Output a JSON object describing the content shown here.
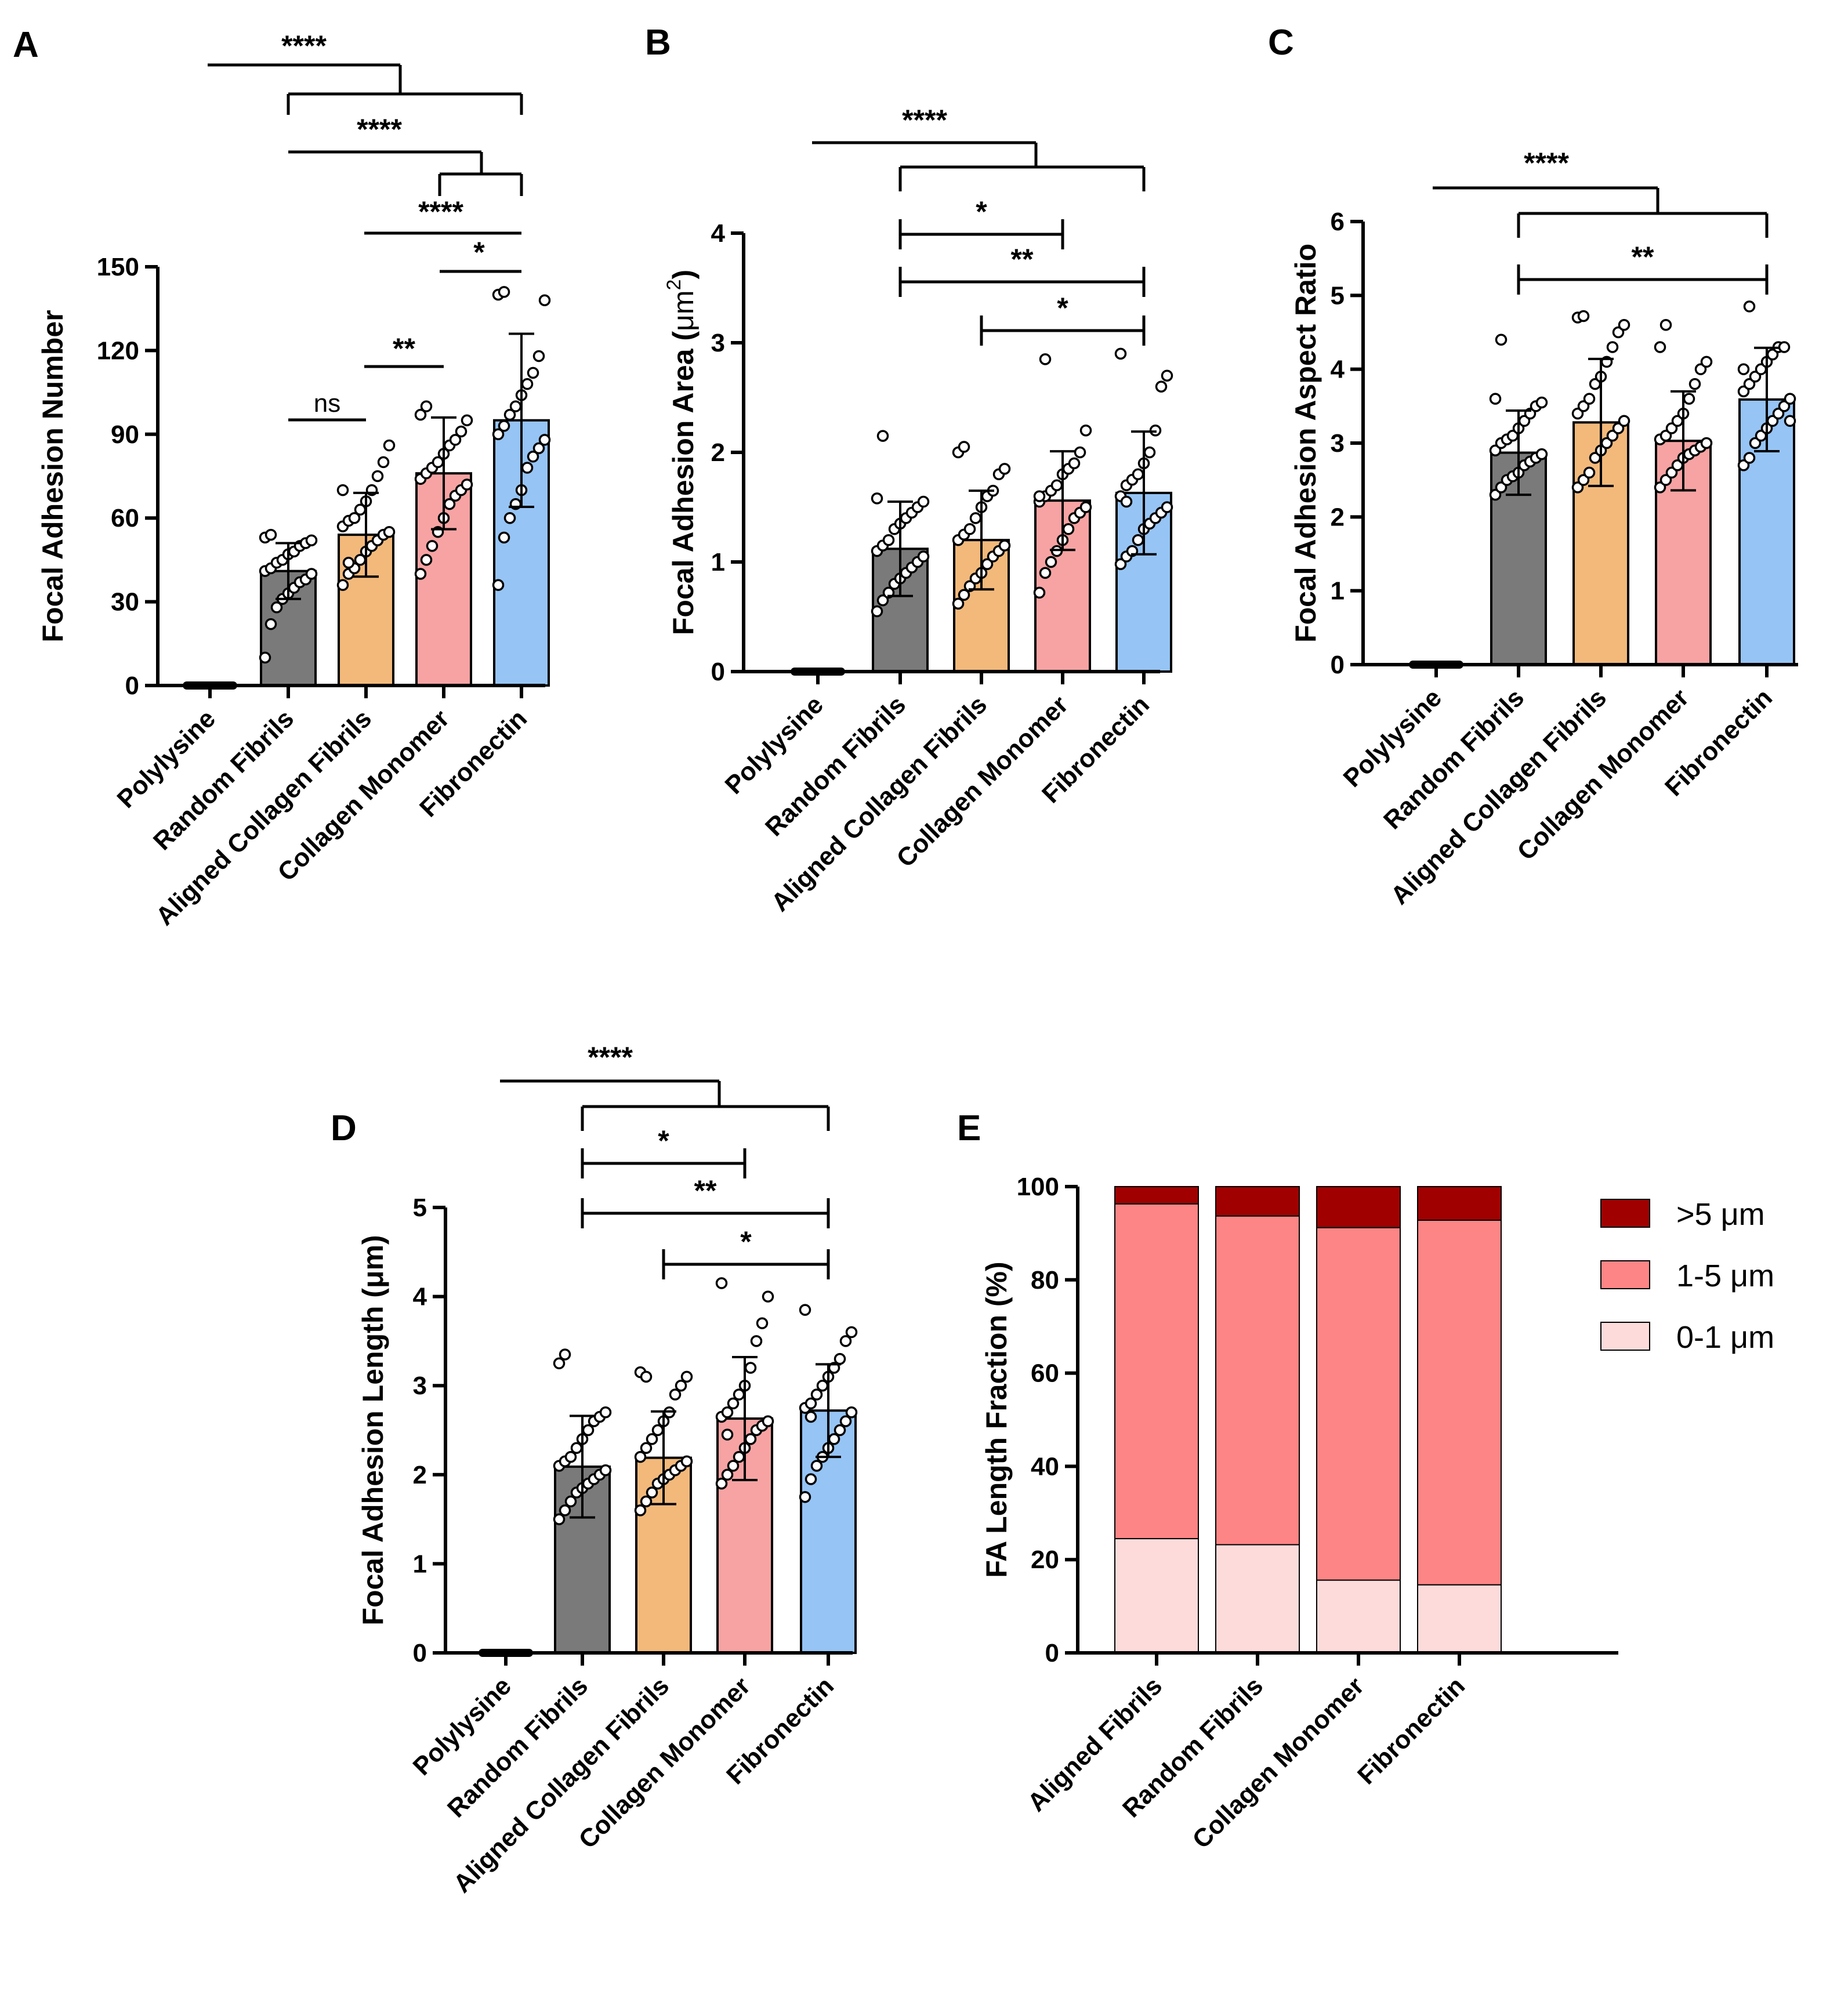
{
  "chart_data": [
    {
      "panel": "A",
      "type": "bar",
      "ylabel": "Focal Adhesion Number",
      "ylim": [
        0,
        150
      ],
      "yticks": [
        0,
        30,
        60,
        90,
        120,
        150
      ],
      "categories": [
        "Polylysine",
        "Random Fibrils",
        "Aligned Collagen Fibrils",
        "Collagen Monomer",
        "Fibronectin"
      ],
      "values": [
        0,
        41,
        54,
        76,
        95
      ],
      "errors": [
        0,
        10,
        15,
        20,
        31
      ],
      "colors": [
        "#7a7a7a",
        "#7a7a7a",
        "#f2b97b",
        "#f7a3a3",
        "#96c4f5"
      ],
      "points": [
        [
          0,
          0,
          0,
          0,
          0,
          0,
          0,
          0,
          0,
          0,
          0,
          0,
          0,
          0,
          0,
          0,
          0,
          0,
          0,
          0
        ],
        [
          10,
          22,
          28,
          31,
          33,
          35,
          37,
          38,
          40,
          41,
          42,
          44,
          45,
          47,
          48,
          50,
          51,
          52,
          53,
          54
        ],
        [
          36,
          40,
          42,
          45,
          48,
          50,
          52,
          54,
          55,
          57,
          59,
          60,
          63,
          66,
          70,
          75,
          80,
          86,
          70,
          44
        ],
        [
          40,
          45,
          50,
          55,
          60,
          65,
          68,
          70,
          72,
          74,
          76,
          78,
          80,
          83,
          86,
          88,
          91,
          95,
          97,
          100
        ],
        [
          36,
          53,
          60,
          65,
          70,
          78,
          82,
          85,
          88,
          90,
          93,
          97,
          100,
          104,
          108,
          112,
          118,
          138,
          140,
          141
        ]
      ],
      "significance": [
        {
          "from": 0,
          "to": "group",
          "label": "****"
        },
        {
          "from": 1,
          "to": "group",
          "label": "****"
        },
        {
          "from": 3,
          "to": 4,
          "label": "****"
        },
        {
          "from": 2,
          "to": 4,
          "label": "*"
        },
        {
          "from": 3,
          "to": 4,
          "label": "*"
        },
        {
          "from": 2,
          "to": 3,
          "label": "**"
        },
        {
          "from": 1,
          "to": 2,
          "label": "ns"
        }
      ]
    },
    {
      "panel": "B",
      "type": "bar",
      "ylabel": "Focal Adhesion Area (μm²)",
      "ylabel_main": "Focal Adhesion Area (",
      "ylabel_unit": "μm",
      "ylabel_sup": "2",
      "ylabel_end": ")",
      "ylim": [
        0,
        4
      ],
      "yticks": [
        0,
        1,
        2,
        3,
        4
      ],
      "categories": [
        "Polylysine",
        "Random Fibrils",
        "Aligned Collagen Fibrils",
        "Collagen Monomer",
        "Fibronectin"
      ],
      "values": [
        0,
        1.12,
        1.2,
        1.56,
        1.63
      ],
      "errors": [
        0,
        0.43,
        0.45,
        0.45,
        0.56
      ],
      "colors": [
        "#7a7a7a",
        "#7a7a7a",
        "#f2b97b",
        "#f7a3a3",
        "#96c4f5"
      ],
      "points": [
        [
          0,
          0,
          0,
          0,
          0,
          0,
          0,
          0,
          0,
          0,
          0,
          0,
          0,
          0,
          0,
          0,
          0,
          0,
          0,
          0
        ],
        [
          0.55,
          0.65,
          0.72,
          0.8,
          0.85,
          0.9,
          0.95,
          1.0,
          1.05,
          1.1,
          1.15,
          1.2,
          1.3,
          1.35,
          1.4,
          1.45,
          1.5,
          1.55,
          1.58,
          2.15
        ],
        [
          0.62,
          0.7,
          0.78,
          0.85,
          0.9,
          0.98,
          1.05,
          1.1,
          1.15,
          1.2,
          1.25,
          1.3,
          1.4,
          1.5,
          1.6,
          1.65,
          1.8,
          1.85,
          2.0,
          2.05
        ],
        [
          0.72,
          0.9,
          1.0,
          1.1,
          1.2,
          1.3,
          1.4,
          1.45,
          1.5,
          1.55,
          1.6,
          1.65,
          1.7,
          1.8,
          1.85,
          1.9,
          2.0,
          2.2,
          1.6,
          2.85
        ],
        [
          0.98,
          1.05,
          1.1,
          1.2,
          1.3,
          1.35,
          1.4,
          1.45,
          1.5,
          1.6,
          1.7,
          1.75,
          1.8,
          1.9,
          2.0,
          2.2,
          2.6,
          2.7,
          2.9,
          1.55
        ]
      ],
      "significance": [
        {
          "from": 0,
          "to": "group",
          "label": "****"
        },
        {
          "from": 1,
          "to": 3,
          "label": "*"
        },
        {
          "from": 1,
          "to": 4,
          "label": "**"
        },
        {
          "from": 2,
          "to": 4,
          "label": "*"
        }
      ]
    },
    {
      "panel": "C",
      "type": "bar",
      "ylabel": "Focal Adhesion Aspect Ratio",
      "ylim": [
        0,
        6
      ],
      "yticks": [
        0,
        1,
        2,
        3,
        4,
        5,
        6
      ],
      "categories": [
        "Polylysine",
        "Random Fibrils",
        "Aligned Collagen Fibrils",
        "Collagen Monomer",
        "Fibronectin"
      ],
      "values": [
        0,
        2.87,
        3.28,
        3.03,
        3.59
      ],
      "errors": [
        0,
        0.57,
        0.86,
        0.67,
        0.7
      ],
      "colors": [
        "#7a7a7a",
        "#7a7a7a",
        "#f2b97b",
        "#f7a3a3",
        "#96c4f5"
      ],
      "points": [
        [
          0,
          0,
          0,
          0,
          0,
          0,
          0,
          0,
          0,
          0,
          0,
          0,
          0,
          0,
          0,
          0,
          0,
          0,
          0,
          0
        ],
        [
          2.3,
          2.4,
          2.5,
          2.55,
          2.6,
          2.7,
          2.75,
          2.8,
          2.85,
          2.9,
          3.0,
          3.05,
          3.1,
          3.2,
          3.3,
          3.4,
          3.5,
          3.55,
          3.6,
          4.4
        ],
        [
          2.4,
          2.5,
          2.6,
          2.8,
          2.9,
          3.0,
          3.1,
          3.2,
          3.3,
          3.4,
          3.5,
          3.6,
          3.8,
          3.9,
          4.1,
          4.3,
          4.5,
          4.6,
          4.7,
          4.72
        ],
        [
          2.4,
          2.5,
          2.6,
          2.7,
          2.8,
          2.85,
          2.9,
          2.95,
          3.0,
          3.05,
          3.1,
          3.2,
          3.3,
          3.4,
          3.6,
          3.8,
          4.0,
          4.1,
          4.3,
          4.6
        ],
        [
          2.7,
          2.8,
          3.0,
          3.1,
          3.2,
          3.3,
          3.4,
          3.5,
          3.6,
          3.7,
          3.8,
          3.9,
          4.0,
          4.1,
          4.2,
          4.3,
          4.3,
          3.3,
          4.0,
          4.85
        ]
      ],
      "significance": [
        {
          "from": 0,
          "to": "group",
          "label": "****"
        },
        {
          "from": 1,
          "to": 4,
          "label": "**"
        }
      ]
    },
    {
      "panel": "D",
      "type": "bar",
      "ylabel": "Focal Adhesion Length (μm)",
      "ylim": [
        0,
        5
      ],
      "yticks": [
        0,
        1,
        2,
        3,
        4,
        5
      ],
      "categories": [
        "Polylysine",
        "Random Fibrils",
        "Aligned Collagen Fibrils",
        "Collagen Monomer",
        "Fibronectin"
      ],
      "values": [
        0,
        2.09,
        2.19,
        2.63,
        2.72
      ],
      "errors": [
        0,
        0.57,
        0.52,
        0.69,
        0.52
      ],
      "colors": [
        "#7a7a7a",
        "#7a7a7a",
        "#f2b97b",
        "#f7a3a3",
        "#96c4f5"
      ],
      "points": [
        [
          0,
          0,
          0,
          0,
          0,
          0,
          0,
          0,
          0,
          0,
          0,
          0,
          0,
          0,
          0,
          0,
          0,
          0,
          0,
          0
        ],
        [
          1.5,
          1.6,
          1.7,
          1.8,
          1.85,
          1.9,
          1.95,
          2.0,
          2.05,
          2.1,
          2.15,
          2.2,
          2.3,
          2.4,
          2.5,
          2.6,
          2.65,
          2.7,
          3.25,
          3.35
        ],
        [
          1.6,
          1.7,
          1.8,
          1.9,
          1.95,
          2.0,
          2.05,
          2.1,
          2.15,
          2.2,
          2.3,
          2.4,
          2.5,
          2.6,
          2.7,
          2.9,
          3.0,
          3.1,
          3.15,
          3.1
        ],
        [
          1.9,
          2.0,
          2.1,
          2.2,
          2.3,
          2.4,
          2.5,
          2.55,
          2.6,
          2.65,
          2.7,
          2.8,
          2.9,
          3.0,
          3.2,
          3.5,
          3.7,
          4.0,
          4.15,
          2.45
        ],
        [
          1.75,
          1.95,
          2.1,
          2.2,
          2.3,
          2.4,
          2.5,
          2.6,
          2.7,
          2.75,
          2.8,
          2.9,
          3.0,
          3.1,
          3.2,
          3.3,
          3.5,
          3.6,
          3.85,
          2.65
        ]
      ],
      "significance": [
        {
          "from": 0,
          "to": "group",
          "label": "****"
        },
        {
          "from": 1,
          "to": 3,
          "label": "*"
        },
        {
          "from": 1,
          "to": 4,
          "label": "**"
        },
        {
          "from": 2,
          "to": 4,
          "label": "*"
        }
      ]
    },
    {
      "panel": "E",
      "type": "bar",
      "stacked": true,
      "ylabel": "FA Length Fraction (%)",
      "ylim": [
        0,
        100
      ],
      "yticks": [
        0,
        20,
        40,
        60,
        80,
        100
      ],
      "categories": [
        "Aligned Fibrils",
        "Random Fibrils",
        "Collagen Monomer",
        "Fibronectin"
      ],
      "series": [
        {
          "name": "0-1 μm",
          "color": "#fddbdb",
          "values": [
            24.5,
            23.2,
            15.6,
            14.6
          ]
        },
        {
          "name": "1-5 μm",
          "color": "#fd8585",
          "values": [
            71.8,
            70.5,
            75.6,
            78.2
          ]
        },
        {
          "name": ">5 μm",
          "color": "#a00000",
          "values": [
            3.7,
            6.3,
            8.8,
            7.2
          ]
        }
      ],
      "legend": "top-right"
    }
  ]
}
